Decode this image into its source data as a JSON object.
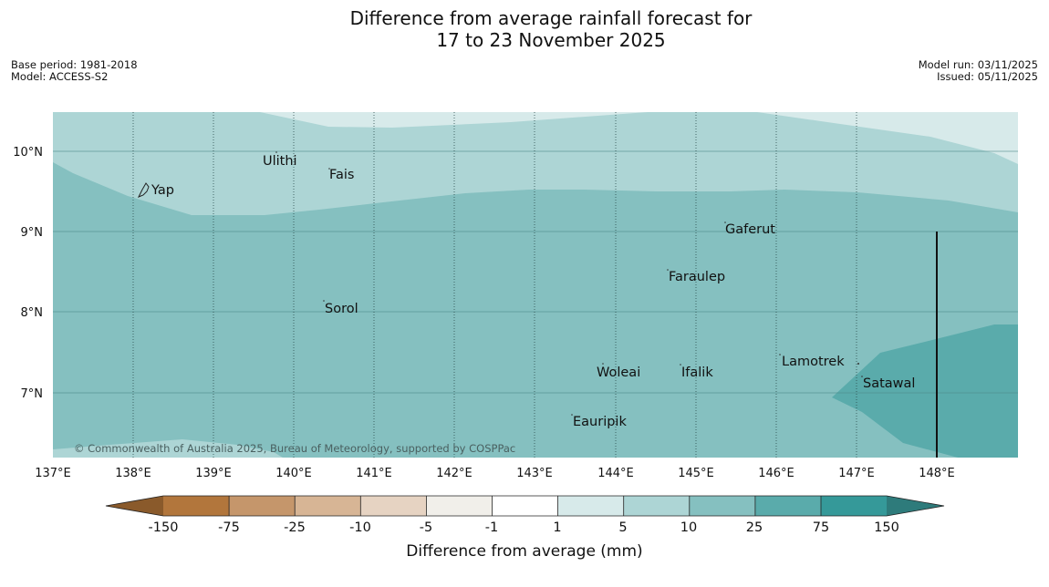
{
  "title": {
    "line1": "Difference from average rainfall forecast for",
    "line2": "17 to 23 November 2025"
  },
  "meta": {
    "base_period": "Base period: 1981-2018",
    "model": "Model: ACCESS-S2",
    "model_run": "Model run: 03/11/2025",
    "issued": "Issued: 05/11/2025"
  },
  "map": {
    "lat_labels": [
      "10°N",
      "9°N",
      "8°N",
      "7°N"
    ],
    "lon_labels": [
      "137°E",
      "138°E",
      "139°E",
      "140°E",
      "141°E",
      "142°E",
      "143°E",
      "144°E",
      "145°E",
      "146°E",
      "147°E",
      "148°E"
    ],
    "places": [
      "Yap",
      "Ulithi",
      "Fais",
      "Gaferut",
      "Faraulep",
      "Sorol",
      "Woleai",
      "Ifalik",
      "Lamotrek",
      "Satawal",
      "Eauripik"
    ],
    "copyright": "© Commonwealth of Australia 2025, Bureau of Meteorology, supported by COSPPac"
  },
  "colors": {
    "c_m150": "#8a5a2b",
    "c_m75": "#b2763c",
    "c_m25": "#c5966b",
    "c_m10": "#d7b595",
    "c_m5": "#e6d3c2",
    "c_m1": "#f1efea",
    "c_1": "#ffffff",
    "c_5": "#d7eaea",
    "c_10": "#add5d5",
    "c_25": "#85c0c0",
    "c_75": "#5aabab",
    "c_150": "#359999",
    "c_over": "#2e7b7b"
  },
  "legend": {
    "ticks": [
      "-150",
      "-75",
      "-25",
      "-10",
      "-5",
      "-1",
      "1",
      "5",
      "10",
      "25",
      "75",
      "150"
    ],
    "label": "Difference from average (mm)"
  }
}
